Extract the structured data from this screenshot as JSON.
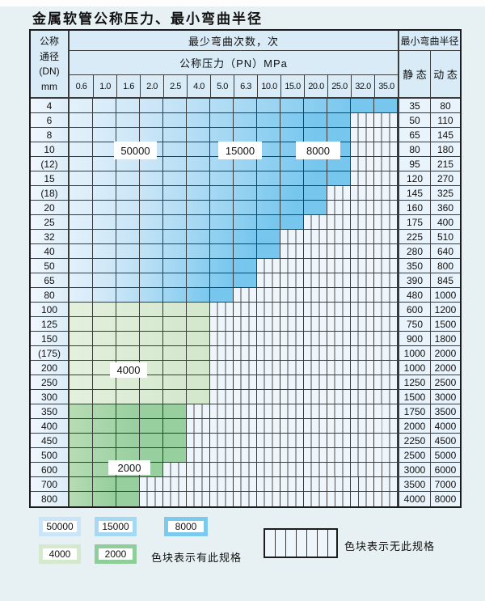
{
  "title": "金属软管公称压力、最小弯曲半径",
  "table": {
    "header": {
      "dn_lines": [
        "公称",
        "通径",
        "(DN)",
        "mm"
      ],
      "bend_cycles": "最少弯曲次数，次",
      "pressure": "公称压力（PN）MPa",
      "pressure_values": [
        "0.6",
        "1.0",
        "1.6",
        "2.0",
        "2.5",
        "4.0",
        "5.0",
        "6.3",
        "10.0",
        "15.0",
        "20.0",
        "25.0",
        "32.0",
        "35.0"
      ],
      "min_bend_radius": "最小弯曲半径",
      "static": "静 态",
      "dynamic": "动 态"
    },
    "rows": [
      {
        "dn": "4",
        "colored_cols": 14,
        "max_pn": "35.0",
        "band": "blue",
        "static": "35",
        "dynamic": "80"
      },
      {
        "dn": "6",
        "colored_cols": 12,
        "max_pn": "25.0",
        "band": "blue",
        "static": "50",
        "dynamic": "110"
      },
      {
        "dn": "8",
        "colored_cols": 12,
        "max_pn": "25.0",
        "band": "blue",
        "static": "65",
        "dynamic": "145"
      },
      {
        "dn": "10",
        "colored_cols": 12,
        "max_pn": "25.0",
        "band": "blue",
        "static": "80",
        "dynamic": "180"
      },
      {
        "dn": "(12)",
        "colored_cols": 12,
        "max_pn": "25.0",
        "band": "blue",
        "static": "95",
        "dynamic": "215"
      },
      {
        "dn": "15",
        "colored_cols": 12,
        "max_pn": "25.0",
        "band": "blue",
        "static": "120",
        "dynamic": "270"
      },
      {
        "dn": "(18)",
        "colored_cols": 11,
        "max_pn": "20.0",
        "band": "blue",
        "static": "145",
        "dynamic": "325"
      },
      {
        "dn": "20",
        "colored_cols": 11,
        "max_pn": "20.0",
        "band": "blue",
        "static": "160",
        "dynamic": "360"
      },
      {
        "dn": "25",
        "colored_cols": 10,
        "max_pn": "15.0",
        "band": "blue",
        "static": "175",
        "dynamic": "400"
      },
      {
        "dn": "32",
        "colored_cols": 9,
        "max_pn": "10.0",
        "band": "blue",
        "static": "225",
        "dynamic": "510"
      },
      {
        "dn": "40",
        "colored_cols": 9,
        "max_pn": "10.0",
        "band": "blue",
        "static": "280",
        "dynamic": "640"
      },
      {
        "dn": "50",
        "colored_cols": 8,
        "max_pn": "6.3",
        "band": "blue",
        "static": "350",
        "dynamic": "800"
      },
      {
        "dn": "65",
        "colored_cols": 8,
        "max_pn": "6.3",
        "band": "blue",
        "static": "390",
        "dynamic": "845"
      },
      {
        "dn": "80",
        "colored_cols": 7,
        "max_pn": "5.0",
        "band": "blue",
        "static": "480",
        "dynamic": "1000"
      },
      {
        "dn": "100",
        "colored_cols": 6,
        "max_pn": "4.0",
        "band": "green-light",
        "static": "600",
        "dynamic": "1200"
      },
      {
        "dn": "125",
        "colored_cols": 6,
        "max_pn": "4.0",
        "band": "green-light",
        "static": "750",
        "dynamic": "1500"
      },
      {
        "dn": "150",
        "colored_cols": 6,
        "max_pn": "4.0",
        "band": "green-light",
        "static": "900",
        "dynamic": "1800"
      },
      {
        "dn": "(175)",
        "colored_cols": 6,
        "max_pn": "4.0",
        "band": "green-light",
        "static": "1000",
        "dynamic": "2000"
      },
      {
        "dn": "200",
        "colored_cols": 6,
        "max_pn": "4.0",
        "band": "green-light",
        "static": "1000",
        "dynamic": "2000"
      },
      {
        "dn": "250",
        "colored_cols": 6,
        "max_pn": "4.0",
        "band": "green-light",
        "static": "1250",
        "dynamic": "2500"
      },
      {
        "dn": "300",
        "colored_cols": 6,
        "max_pn": "4.0",
        "band": "green-light",
        "static": "1500",
        "dynamic": "3000"
      },
      {
        "dn": "350",
        "colored_cols": 5,
        "max_pn": "2.5",
        "band": "green-dark",
        "static": "1750",
        "dynamic": "3500"
      },
      {
        "dn": "400",
        "colored_cols": 5,
        "max_pn": "2.5",
        "band": "green-dark",
        "static": "2000",
        "dynamic": "4000"
      },
      {
        "dn": "450",
        "colored_cols": 5,
        "max_pn": "2.5",
        "band": "green-dark",
        "static": "2250",
        "dynamic": "4500"
      },
      {
        "dn": "500",
        "colored_cols": 5,
        "max_pn": "2.5",
        "band": "green-dark",
        "static": "2500",
        "dynamic": "5000"
      },
      {
        "dn": "600",
        "colored_cols": 4,
        "max_pn": "2.0",
        "band": "green-dark",
        "static": "3000",
        "dynamic": "6000"
      },
      {
        "dn": "700",
        "colored_cols": 3,
        "max_pn": "1.6",
        "band": "green-dark",
        "static": "3500",
        "dynamic": "7000"
      },
      {
        "dn": "800",
        "colored_cols": 3,
        "max_pn": "1.6",
        "band": "green-dark",
        "static": "4000",
        "dynamic": "8000"
      }
    ]
  },
  "overlays": {
    "50000": "50000",
    "15000": "15000",
    "8000": "8000",
    "4000": "4000",
    "2000": "2000"
  },
  "legend": {
    "items": [
      {
        "id": "50000",
        "label": "50000",
        "color": "#c9e5f7"
      },
      {
        "id": "15000",
        "label": "15000",
        "color": "#a5d8f3"
      },
      {
        "id": "8000",
        "label": "8000",
        "color": "#7cc9ee"
      },
      {
        "id": "4000",
        "label": "4000",
        "color": "#d5e9cf"
      },
      {
        "id": "2000",
        "label": "2000",
        "color": "#8fcd9b"
      }
    ],
    "note_has": "色块表示有此规格",
    "note_none": "色块表示无此规格"
  },
  "colors": {
    "page_bg": "#e7f1f4",
    "table_header_bg": "#d8ebf7",
    "label_cell_bg_start": "#f0f7fd",
    "label_cell_bg_end": "#dcedf8",
    "value_cell_bg": "#e9f3fb",
    "grid_line": "#3a3a3a",
    "outer_border": "#1c1c1c",
    "stripe_bg": "#eef5fb",
    "stripe_line": "#4f4f4f",
    "blue_band_start": "#e3f1fb",
    "cycles_50000": "#c9e5f7",
    "cycles_15000": "#a5d8f3",
    "cycles_8000": "#76c6ee",
    "green_band_start": "#e4f0dd",
    "cycles_4000": "#d2e7cc",
    "green_dark_start": "#b7dcb4",
    "cycles_2000": "#97cf9f",
    "label_box_bg": "#ffffff"
  }
}
